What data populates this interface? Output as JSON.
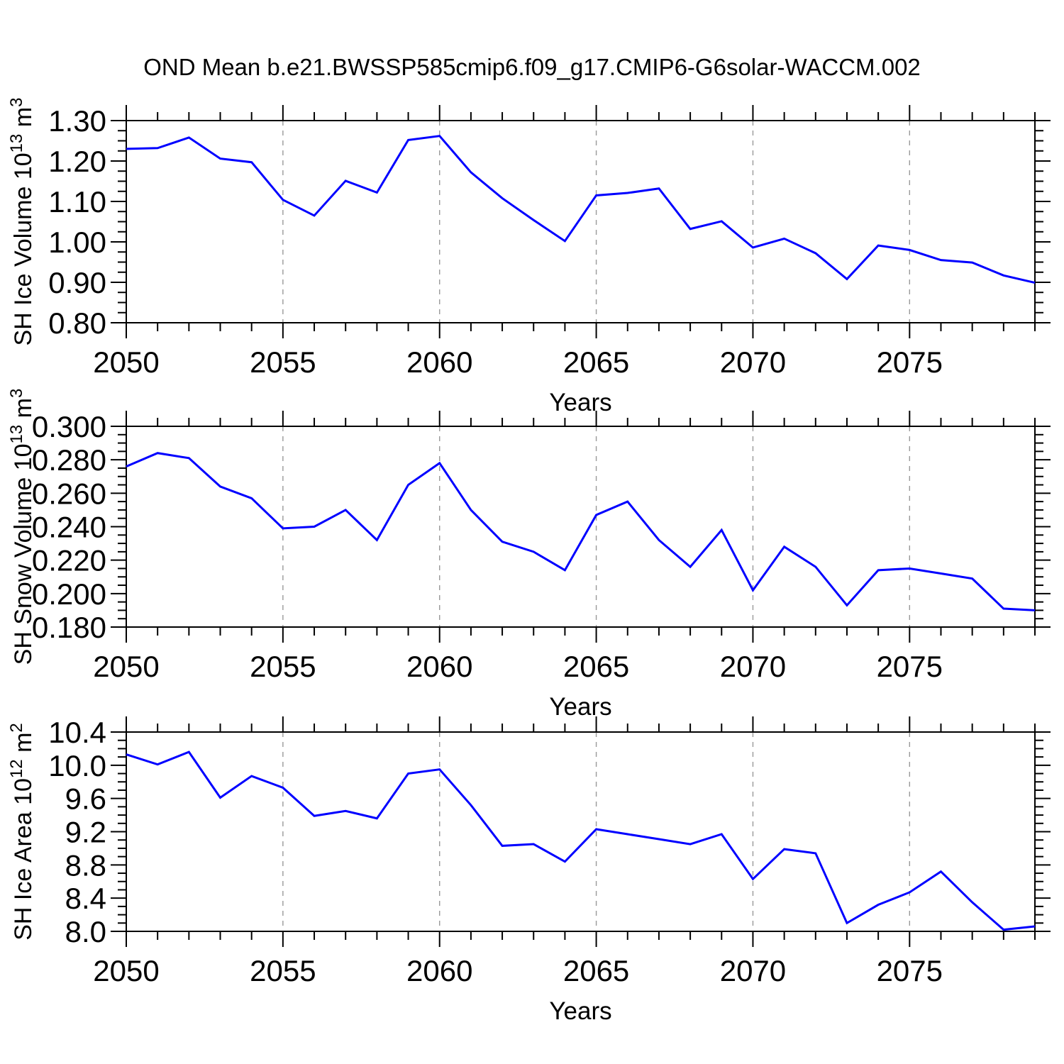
{
  "title": "OND Mean b.e21.BWSSP585cmip6.f09_g17.CMIP6-G6solar-WACCM.002",
  "colors": {
    "line": "#0000ff",
    "grid": "#999999",
    "axis": "#000000",
    "background": "#ffffff"
  },
  "chart_data": [
    {
      "type": "line",
      "panel": "sh-ice-volume",
      "xlabel": "Years",
      "ylabel": "SH Ice Volume 10^13 m^3",
      "ylabel_parts": [
        {
          "t": "SH Ice Volume 10"
        },
        {
          "t": "13",
          "sup": true
        },
        {
          "t": " m"
        },
        {
          "t": "3",
          "sup": true
        }
      ],
      "xlim": [
        2050,
        2079
      ],
      "ylim": [
        0.8,
        1.3
      ],
      "xticks": [
        2050,
        2055,
        2060,
        2065,
        2070,
        2075
      ],
      "xtick_labels": [
        "2050",
        "2055",
        "2060",
        "2065",
        "2070",
        "2075"
      ],
      "xminor_step": 1,
      "yticks": [
        0.8,
        0.9,
        1.0,
        1.1,
        1.2,
        1.3
      ],
      "ytick_labels": [
        "0.80",
        "0.90",
        "1.00",
        "1.10",
        "1.20",
        "1.30"
      ],
      "yminor_step": 0.025,
      "grid_x": [
        2055,
        2060,
        2065,
        2070,
        2075
      ],
      "x": [
        2050,
        2051,
        2052,
        2053,
        2054,
        2055,
        2056,
        2057,
        2058,
        2059,
        2060,
        2061,
        2062,
        2063,
        2064,
        2065,
        2066,
        2067,
        2068,
        2069,
        2070,
        2071,
        2072,
        2073,
        2074,
        2075,
        2076,
        2077,
        2078,
        2079
      ],
      "series": [
        {
          "name": "SH Ice Volume",
          "values": [
            1.23,
            1.232,
            1.258,
            1.206,
            1.197,
            1.104,
            1.065,
            1.151,
            1.122,
            1.252,
            1.262,
            1.172,
            1.108,
            1.054,
            1.002,
            1.115,
            1.121,
            1.132,
            1.032,
            1.051,
            0.986,
            1.008,
            0.972,
            0.908,
            0.991,
            0.98,
            0.955,
            0.949,
            0.917,
            0.899
          ]
        }
      ]
    },
    {
      "type": "line",
      "panel": "sh-snow-volume",
      "xlabel": "Years",
      "ylabel": "SH Snow Volume 10^13 m^3",
      "ylabel_parts": [
        {
          "t": "SH Snow Volume 10"
        },
        {
          "t": "13",
          "sup": true
        },
        {
          "t": " m"
        },
        {
          "t": "3",
          "sup": true
        }
      ],
      "xlim": [
        2050,
        2079
      ],
      "ylim": [
        0.18,
        0.3
      ],
      "xticks": [
        2050,
        2055,
        2060,
        2065,
        2070,
        2075
      ],
      "xtick_labels": [
        "2050",
        "2055",
        "2060",
        "2065",
        "2070",
        "2075"
      ],
      "xminor_step": 1,
      "yticks": [
        0.18,
        0.2,
        0.22,
        0.24,
        0.26,
        0.28,
        0.3
      ],
      "ytick_labels": [
        "0.180",
        "0.200",
        "0.220",
        "0.240",
        "0.260",
        "0.280",
        "0.300"
      ],
      "yminor_step": 0.005,
      "grid_x": [
        2055,
        2060,
        2065,
        2070,
        2075
      ],
      "x": [
        2050,
        2051,
        2052,
        2053,
        2054,
        2055,
        2056,
        2057,
        2058,
        2059,
        2060,
        2061,
        2062,
        2063,
        2064,
        2065,
        2066,
        2067,
        2068,
        2069,
        2070,
        2071,
        2072,
        2073,
        2074,
        2075,
        2076,
        2077,
        2078,
        2079
      ],
      "series": [
        {
          "name": "SH Snow Volume",
          "values": [
            0.276,
            0.284,
            0.281,
            0.264,
            0.257,
            0.239,
            0.24,
            0.25,
            0.232,
            0.265,
            0.278,
            0.25,
            0.231,
            0.225,
            0.214,
            0.247,
            0.255,
            0.232,
            0.216,
            0.238,
            0.202,
            0.228,
            0.216,
            0.193,
            0.214,
            0.215,
            0.212,
            0.209,
            0.191,
            0.19
          ]
        }
      ]
    },
    {
      "type": "line",
      "panel": "sh-ice-area",
      "xlabel": "Years",
      "ylabel": "SH Ice Area 10^12 m^2",
      "ylabel_parts": [
        {
          "t": "SH Ice Area 10"
        },
        {
          "t": "12",
          "sup": true
        },
        {
          "t": " m"
        },
        {
          "t": "2",
          "sup": true
        }
      ],
      "xlim": [
        2050,
        2079
      ],
      "ylim": [
        8.0,
        10.4
      ],
      "xticks": [
        2050,
        2055,
        2060,
        2065,
        2070,
        2075
      ],
      "xtick_labels": [
        "2050",
        "2055",
        "2060",
        "2065",
        "2070",
        "2075"
      ],
      "xminor_step": 1,
      "yticks": [
        8.0,
        8.4,
        8.8,
        9.2,
        9.6,
        10.0,
        10.4
      ],
      "ytick_labels": [
        "8.0",
        "8.4",
        "8.8",
        "9.2",
        "9.6",
        "10.0",
        "10.4"
      ],
      "yminor_step": 0.1,
      "grid_x": [
        2055,
        2060,
        2065,
        2070,
        2075
      ],
      "x": [
        2050,
        2051,
        2052,
        2053,
        2054,
        2055,
        2056,
        2057,
        2058,
        2059,
        2060,
        2061,
        2062,
        2063,
        2064,
        2065,
        2066,
        2067,
        2068,
        2069,
        2070,
        2071,
        2072,
        2073,
        2074,
        2075,
        2076,
        2077,
        2078,
        2079
      ],
      "series": [
        {
          "name": "SH Ice Area",
          "values": [
            10.13,
            10.01,
            10.16,
            9.61,
            9.87,
            9.73,
            9.39,
            9.45,
            9.36,
            9.9,
            9.95,
            9.52,
            9.03,
            9.05,
            8.84,
            9.23,
            9.17,
            9.11,
            9.05,
            9.17,
            8.63,
            8.99,
            8.94,
            8.1,
            8.32,
            8.47,
            8.72,
            8.35,
            8.02,
            8.06
          ]
        }
      ]
    }
  ]
}
